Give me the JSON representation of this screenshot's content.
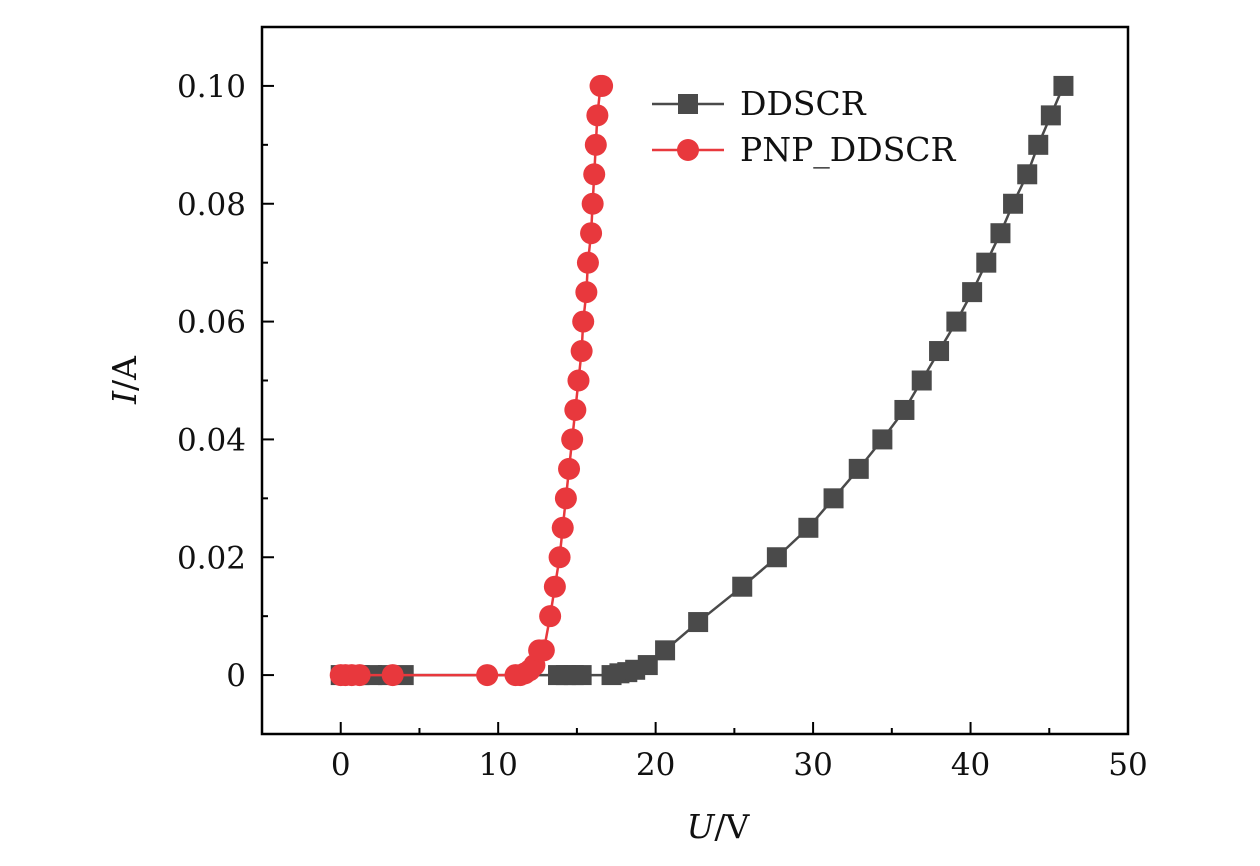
{
  "chart_data": {
    "type": "line",
    "title": "",
    "xlabel": {
      "var": "U",
      "unit": "V"
    },
    "ylabel": {
      "var": "I",
      "unit": "A"
    },
    "xlim": [
      -5,
      50
    ],
    "ylim": [
      -0.01,
      0.11
    ],
    "xticks": [
      0,
      10,
      20,
      30,
      40,
      50
    ],
    "xtick_labels": [
      "0",
      "10",
      "20",
      "30",
      "40",
      "50"
    ],
    "yticks": [
      0,
      0.02,
      0.04,
      0.06,
      0.08,
      0.1
    ],
    "ytick_labels": [
      "0",
      "0.02",
      "0.04",
      "0.06",
      "0.08",
      "0.10"
    ],
    "grid": false,
    "legend_position": "top-right",
    "series": [
      {
        "name": "DDSCR",
        "color": "#4a4a4a",
        "marker": "square",
        "x": [
          0,
          0.5,
          1.2,
          2.0,
          3.0,
          4.0,
          13.8,
          14.3,
          14.8,
          15.3,
          17.2,
          17.7,
          18.2,
          18.7,
          19.5,
          20.6,
          22.7,
          25.5,
          27.7,
          29.7,
          31.3,
          32.9,
          34.4,
          35.8,
          36.9,
          38.0,
          39.1,
          40.1,
          41.0,
          41.9,
          42.7,
          43.6,
          44.3,
          45.1,
          45.9
        ],
        "y": [
          0,
          0,
          0,
          0,
          0,
          0,
          0,
          0,
          0,
          0,
          0,
          0.0003,
          0.0005,
          0.0009,
          0.0017,
          0.0042,
          0.009,
          0.015,
          0.02,
          0.025,
          0.03,
          0.035,
          0.04,
          0.045,
          0.05,
          0.055,
          0.06,
          0.065,
          0.07,
          0.075,
          0.08,
          0.085,
          0.09,
          0.095,
          0.1
        ]
      },
      {
        "name": "PNP_DDSCR",
        "color": "#e8383d",
        "marker": "circle",
        "x": [
          0,
          0.3,
          0.7,
          1.2,
          3.3,
          9.3,
          11.1,
          11.4,
          11.7,
          12.0,
          12.3,
          12.6,
          12.9,
          13.3,
          13.6,
          13.9,
          14.1,
          14.3,
          14.5,
          14.7,
          14.9,
          15.1,
          15.3,
          15.4,
          15.6,
          15.7,
          15.9,
          16.0,
          16.1,
          16.2,
          16.3,
          16.5,
          16.6
        ],
        "y": [
          0,
          0,
          0,
          0,
          0,
          0,
          0,
          0,
          0.0003,
          0.0008,
          0.0017,
          0.0042,
          0.0042,
          0.01,
          0.015,
          0.02,
          0.025,
          0.03,
          0.035,
          0.04,
          0.045,
          0.05,
          0.055,
          0.06,
          0.065,
          0.07,
          0.075,
          0.08,
          0.085,
          0.09,
          0.095,
          0.1,
          0.1
        ]
      }
    ]
  }
}
